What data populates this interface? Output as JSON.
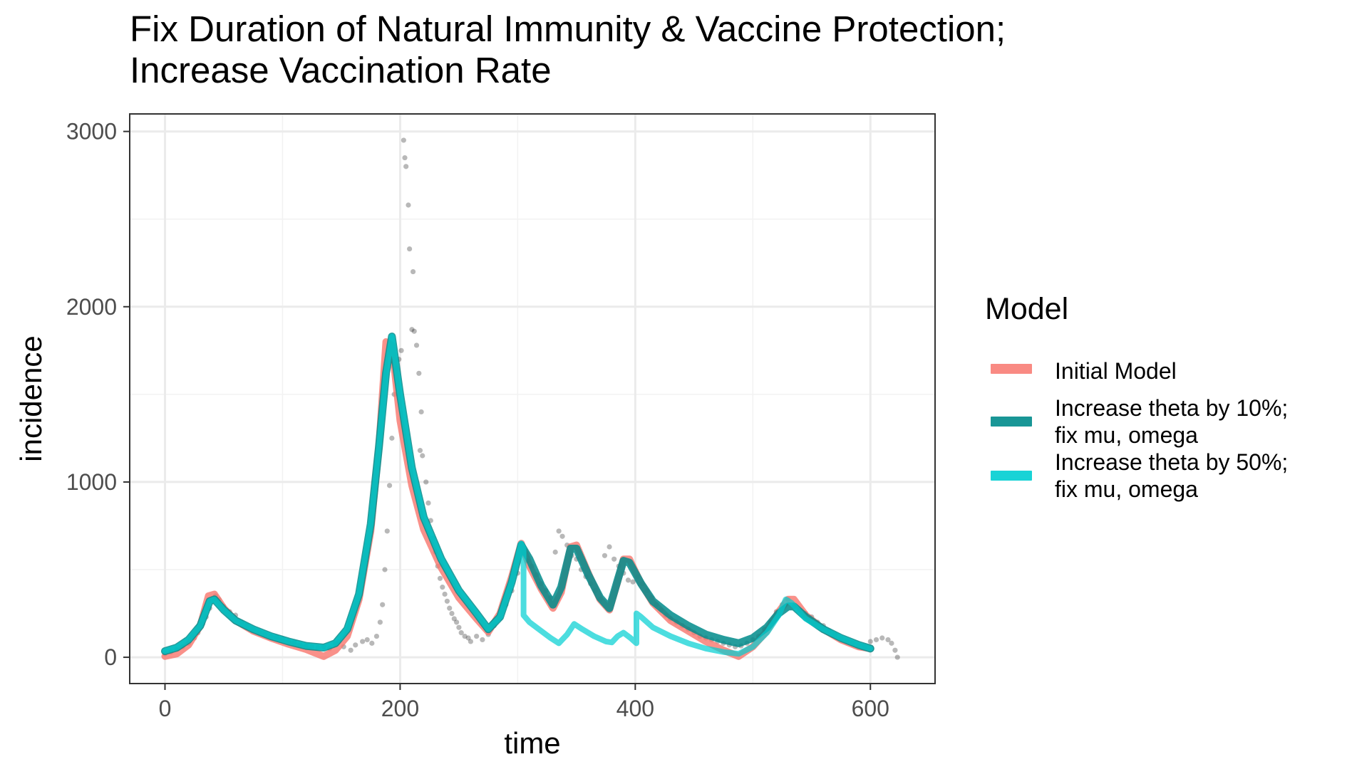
{
  "title_lines": [
    "Fix Duration of Natural Immunity & Vaccine Protection;",
    "Increase Vaccination Rate"
  ],
  "chart_data": {
    "type": "line",
    "title": "Fix Duration of Natural Immunity & Vaccine Protection; Increase Vaccination Rate",
    "xlabel": "time",
    "ylabel": "incidence",
    "xlim": [
      -30,
      655
    ],
    "ylim": [
      -150,
      3100
    ],
    "x_ticks": [
      0,
      200,
      400,
      600
    ],
    "x_tick_labels": [
      "0",
      "200",
      "400",
      "600"
    ],
    "y_ticks": [
      0,
      1000,
      2000,
      3000
    ],
    "y_tick_labels": [
      "0",
      "1000",
      "2000",
      "3000"
    ],
    "grid": true,
    "legend": {
      "title": "Model",
      "position": "right",
      "entries": [
        {
          "label_lines": [
            "Initial Model"
          ],
          "color": "#F8766D"
        },
        {
          "label_lines": [
            "Increase theta by 10%;",
            "fix mu, omega"
          ],
          "color": "#008B8B"
        },
        {
          "label_lines": [
            "Increase theta by 50%;",
            "fix mu, omega"
          ],
          "color": "#00CED1"
        }
      ]
    },
    "series": [
      {
        "name": "Initial Model",
        "color": "#F8766D",
        "points": [
          [
            0,
            5
          ],
          [
            10,
            20
          ],
          [
            20,
            70
          ],
          [
            30,
            180
          ],
          [
            37,
            350
          ],
          [
            42,
            360
          ],
          [
            50,
            280
          ],
          [
            60,
            210
          ],
          [
            75,
            150
          ],
          [
            90,
            110
          ],
          [
            105,
            75
          ],
          [
            120,
            45
          ],
          [
            135,
            5
          ],
          [
            145,
            40
          ],
          [
            155,
            120
          ],
          [
            165,
            330
          ],
          [
            175,
            720
          ],
          [
            182,
            1200
          ],
          [
            188,
            1800
          ],
          [
            193,
            1780
          ],
          [
            200,
            1350
          ],
          [
            210,
            980
          ],
          [
            220,
            730
          ],
          [
            235,
            510
          ],
          [
            250,
            340
          ],
          [
            265,
            220
          ],
          [
            275,
            145
          ],
          [
            285,
            250
          ],
          [
            295,
            460
          ],
          [
            303,
            650
          ],
          [
            310,
            520
          ],
          [
            320,
            390
          ],
          [
            330,
            280
          ],
          [
            337,
            370
          ],
          [
            345,
            630
          ],
          [
            350,
            640
          ],
          [
            360,
            480
          ],
          [
            370,
            330
          ],
          [
            378,
            270
          ],
          [
            385,
            430
          ],
          [
            390,
            560
          ],
          [
            395,
            560
          ],
          [
            405,
            420
          ],
          [
            415,
            310
          ],
          [
            430,
            210
          ],
          [
            445,
            150
          ],
          [
            460,
            90
          ],
          [
            475,
            40
          ],
          [
            488,
            5
          ],
          [
            500,
            60
          ],
          [
            512,
            150
          ],
          [
            522,
            260
          ],
          [
            530,
            330
          ],
          [
            535,
            330
          ],
          [
            545,
            240
          ],
          [
            560,
            160
          ],
          [
            575,
            100
          ],
          [
            590,
            60
          ],
          [
            600,
            50
          ]
        ]
      },
      {
        "name": "Increase theta by 10%; fix mu, omega",
        "color": "#008B8B",
        "points": [
          [
            0,
            35
          ],
          [
            10,
            55
          ],
          [
            20,
            100
          ],
          [
            30,
            180
          ],
          [
            38,
            320
          ],
          [
            42,
            330
          ],
          [
            50,
            270
          ],
          [
            60,
            210
          ],
          [
            75,
            160
          ],
          [
            90,
            120
          ],
          [
            105,
            90
          ],
          [
            120,
            65
          ],
          [
            135,
            55
          ],
          [
            145,
            80
          ],
          [
            155,
            160
          ],
          [
            165,
            360
          ],
          [
            175,
            760
          ],
          [
            182,
            1200
          ],
          [
            188,
            1620
          ],
          [
            193,
            1830
          ],
          [
            200,
            1500
          ],
          [
            210,
            1080
          ],
          [
            220,
            800
          ],
          [
            235,
            560
          ],
          [
            250,
            380
          ],
          [
            265,
            250
          ],
          [
            275,
            160
          ],
          [
            285,
            230
          ],
          [
            295,
            430
          ],
          [
            303,
            640
          ],
          [
            310,
            560
          ],
          [
            320,
            410
          ],
          [
            330,
            300
          ],
          [
            337,
            400
          ],
          [
            345,
            620
          ],
          [
            350,
            620
          ],
          [
            360,
            470
          ],
          [
            370,
            340
          ],
          [
            378,
            280
          ],
          [
            385,
            440
          ],
          [
            390,
            550
          ],
          [
            395,
            540
          ],
          [
            405,
            420
          ],
          [
            415,
            320
          ],
          [
            430,
            240
          ],
          [
            445,
            180
          ],
          [
            460,
            130
          ],
          [
            475,
            100
          ],
          [
            488,
            80
          ],
          [
            500,
            110
          ],
          [
            512,
            170
          ],
          [
            522,
            250
          ],
          [
            530,
            290
          ],
          [
            535,
            290
          ],
          [
            545,
            230
          ],
          [
            560,
            160
          ],
          [
            575,
            110
          ],
          [
            590,
            70
          ],
          [
            600,
            50
          ]
        ]
      },
      {
        "name": "Increase theta by 50%; fix mu, omega",
        "color": "#00CED1",
        "points": [
          [
            0,
            35
          ],
          [
            10,
            55
          ],
          [
            20,
            100
          ],
          [
            30,
            180
          ],
          [
            38,
            320
          ],
          [
            42,
            330
          ],
          [
            50,
            270
          ],
          [
            60,
            210
          ],
          [
            75,
            160
          ],
          [
            90,
            120
          ],
          [
            105,
            90
          ],
          [
            120,
            65
          ],
          [
            135,
            55
          ],
          [
            145,
            80
          ],
          [
            155,
            160
          ],
          [
            165,
            360
          ],
          [
            175,
            760
          ],
          [
            182,
            1200
          ],
          [
            188,
            1620
          ],
          [
            193,
            1830
          ],
          [
            200,
            1500
          ],
          [
            210,
            1080
          ],
          [
            220,
            800
          ],
          [
            235,
            560
          ],
          [
            250,
            380
          ],
          [
            265,
            250
          ],
          [
            275,
            160
          ],
          [
            285,
            230
          ],
          [
            295,
            430
          ],
          [
            303,
            650
          ],
          [
            305,
            620
          ],
          [
            305,
            240
          ],
          [
            310,
            200
          ],
          [
            320,
            150
          ],
          [
            328,
            110
          ],
          [
            335,
            80
          ],
          [
            342,
            130
          ],
          [
            348,
            190
          ],
          [
            355,
            160
          ],
          [
            365,
            120
          ],
          [
            375,
            90
          ],
          [
            380,
            85
          ],
          [
            385,
            120
          ],
          [
            390,
            140
          ],
          [
            396,
            110
          ],
          [
            401,
            80
          ],
          [
            401,
            250
          ],
          [
            405,
            230
          ],
          [
            415,
            170
          ],
          [
            430,
            120
          ],
          [
            445,
            80
          ],
          [
            460,
            50
          ],
          [
            475,
            30
          ],
          [
            488,
            20
          ],
          [
            500,
            60
          ],
          [
            512,
            140
          ],
          [
            522,
            240
          ],
          [
            528,
            330
          ],
          [
            533,
            310
          ],
          [
            545,
            220
          ],
          [
            560,
            160
          ],
          [
            575,
            110
          ],
          [
            590,
            70
          ],
          [
            600,
            50
          ]
        ]
      }
    ],
    "observed_points": [
      [
        0,
        20
      ],
      [
        5,
        30
      ],
      [
        10,
        45
      ],
      [
        15,
        60
      ],
      [
        20,
        80
      ],
      [
        25,
        110
      ],
      [
        28,
        140
      ],
      [
        32,
        190
      ],
      [
        35,
        230
      ],
      [
        38,
        280
      ],
      [
        40,
        320
      ],
      [
        43,
        350
      ],
      [
        46,
        330
      ],
      [
        50,
        290
      ],
      [
        55,
        260
      ],
      [
        60,
        240
      ],
      [
        65,
        200
      ],
      [
        70,
        180
      ],
      [
        75,
        160
      ],
      [
        80,
        140
      ],
      [
        85,
        130
      ],
      [
        90,
        120
      ],
      [
        95,
        115
      ],
      [
        100,
        105
      ],
      [
        105,
        90
      ],
      [
        110,
        85
      ],
      [
        115,
        70
      ],
      [
        120,
        65
      ],
      [
        125,
        60
      ],
      [
        130,
        55
      ],
      [
        135,
        60
      ],
      [
        140,
        50
      ],
      [
        145,
        80
      ],
      [
        148,
        90
      ],
      [
        152,
        60
      ],
      [
        158,
        40
      ],
      [
        162,
        70
      ],
      [
        168,
        90
      ],
      [
        172,
        100
      ],
      [
        176,
        80
      ],
      [
        180,
        120
      ],
      [
        183,
        200
      ],
      [
        185,
        300
      ],
      [
        187,
        500
      ],
      [
        189,
        720
      ],
      [
        191,
        980
      ],
      [
        193,
        1250
      ],
      [
        195,
        1500
      ],
      [
        197,
        1650
      ],
      [
        199,
        1700
      ],
      [
        201,
        1750
      ],
      [
        203,
        2950
      ],
      [
        204,
        2850
      ],
      [
        205,
        2800
      ],
      [
        207,
        2580
      ],
      [
        208,
        2330
      ],
      [
        211,
        2200
      ],
      [
        210,
        1870
      ],
      [
        212,
        1860
      ],
      [
        214,
        1780
      ],
      [
        216,
        1620
      ],
      [
        218,
        1400
      ],
      [
        217,
        1180
      ],
      [
        219,
        1150
      ],
      [
        222,
        1000
      ],
      [
        224,
        880
      ],
      [
        226,
        780
      ],
      [
        228,
        680
      ],
      [
        230,
        600
      ],
      [
        232,
        520
      ],
      [
        234,
        450
      ],
      [
        236,
        400
      ],
      [
        238,
        360
      ],
      [
        240,
        320
      ],
      [
        242,
        280
      ],
      [
        244,
        250
      ],
      [
        246,
        220
      ],
      [
        248,
        200
      ],
      [
        250,
        170
      ],
      [
        252,
        140
      ],
      [
        255,
        120
      ],
      [
        258,
        110
      ],
      [
        260,
        90
      ],
      [
        265,
        120
      ],
      [
        270,
        100
      ],
      [
        275,
        130
      ],
      [
        280,
        180
      ],
      [
        285,
        220
      ],
      [
        290,
        300
      ],
      [
        295,
        380
      ],
      [
        300,
        480
      ],
      [
        305,
        600
      ],
      [
        308,
        550
      ],
      [
        312,
        520
      ],
      [
        316,
        470
      ],
      [
        320,
        420
      ],
      [
        324,
        380
      ],
      [
        328,
        340
      ],
      [
        332,
        600
      ],
      [
        335,
        720
      ],
      [
        338,
        690
      ],
      [
        342,
        640
      ],
      [
        346,
        580
      ],
      [
        350,
        560
      ],
      [
        354,
        500
      ],
      [
        358,
        460
      ],
      [
        362,
        420
      ],
      [
        366,
        380
      ],
      [
        370,
        330
      ],
      [
        374,
        580
      ],
      [
        378,
        630
      ],
      [
        382,
        560
      ],
      [
        386,
        520
      ],
      [
        390,
        480
      ],
      [
        394,
        440
      ],
      [
        398,
        430
      ],
      [
        402,
        460
      ],
      [
        406,
        420
      ],
      [
        410,
        380
      ],
      [
        414,
        340
      ],
      [
        418,
        300
      ],
      [
        422,
        270
      ],
      [
        426,
        240
      ],
      [
        430,
        220
      ],
      [
        435,
        200
      ],
      [
        440,
        180
      ],
      [
        445,
        160
      ],
      [
        450,
        140
      ],
      [
        455,
        120
      ],
      [
        460,
        110
      ],
      [
        465,
        100
      ],
      [
        470,
        90
      ],
      [
        475,
        80
      ],
      [
        480,
        70
      ],
      [
        485,
        60
      ],
      [
        490,
        65
      ],
      [
        495,
        80
      ],
      [
        500,
        100
      ],
      [
        505,
        120
      ],
      [
        510,
        160
      ],
      [
        515,
        200
      ],
      [
        520,
        260
      ],
      [
        525,
        300
      ],
      [
        530,
        330
      ],
      [
        535,
        290
      ],
      [
        540,
        270
      ],
      [
        545,
        250
      ],
      [
        550,
        230
      ],
      [
        555,
        200
      ],
      [
        560,
        180
      ],
      [
        565,
        150
      ],
      [
        570,
        130
      ],
      [
        575,
        110
      ],
      [
        580,
        90
      ],
      [
        585,
        80
      ],
      [
        590,
        70
      ],
      [
        595,
        60
      ],
      [
        600,
        90
      ],
      [
        605,
        100
      ],
      [
        610,
        110
      ],
      [
        615,
        100
      ],
      [
        618,
        80
      ],
      [
        621,
        40
      ],
      [
        623,
        0
      ]
    ]
  }
}
